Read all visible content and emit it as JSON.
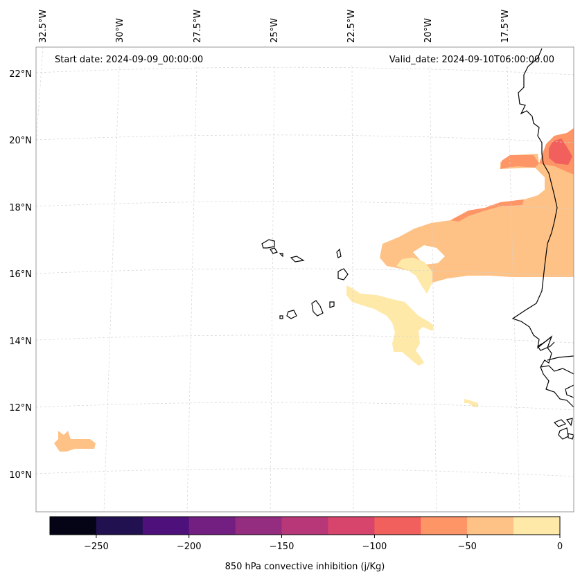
{
  "map": {
    "start_label": "Start date: 2024-09-09_00:00:00",
    "valid_label": "Valid_date: 2024-09-10T06:00:00.00",
    "lon_labels": [
      "32.5°W",
      "30°W",
      "27.5°W",
      "25°W",
      "22.5°W",
      "20°W",
      "17.5°W"
    ],
    "lat_labels": [
      "22°N",
      "20°N",
      "18°N",
      "16°N",
      "14°N",
      "12°N",
      "10°N"
    ],
    "coast_color": "#000000"
  },
  "colorbar": {
    "title": "850 hPa convective inhibition (j/Kg)",
    "tick_labels": [
      "−250",
      "−200",
      "−150",
      "−100",
      "−50",
      "0"
    ],
    "bins": [
      {
        "range": "-275 to -250",
        "color": "#050416"
      },
      {
        "range": "-250 to -225",
        "color": "#221150"
      },
      {
        "range": "-225 to -200",
        "color": "#4e117b"
      },
      {
        "range": "-200 to -175",
        "color": "#721f81"
      },
      {
        "range": "-175 to -150",
        "color": "#942c80"
      },
      {
        "range": "-150 to -125",
        "color": "#b73779"
      },
      {
        "range": "-125 to -100",
        "color": "#d8456c"
      },
      {
        "range": "-100 to -75",
        "color": "#f1605d"
      },
      {
        "range": "-75 to -50",
        "color": "#fd9567"
      },
      {
        "range": "-50 to -25",
        "color": "#fec287"
      },
      {
        "range": "-25 to 0",
        "color": "#fee9a9"
      }
    ]
  },
  "fills": {
    "light": "#fee9a9",
    "tan": "#fec287",
    "orange": "#fd9567",
    "red": "#f1605d"
  }
}
